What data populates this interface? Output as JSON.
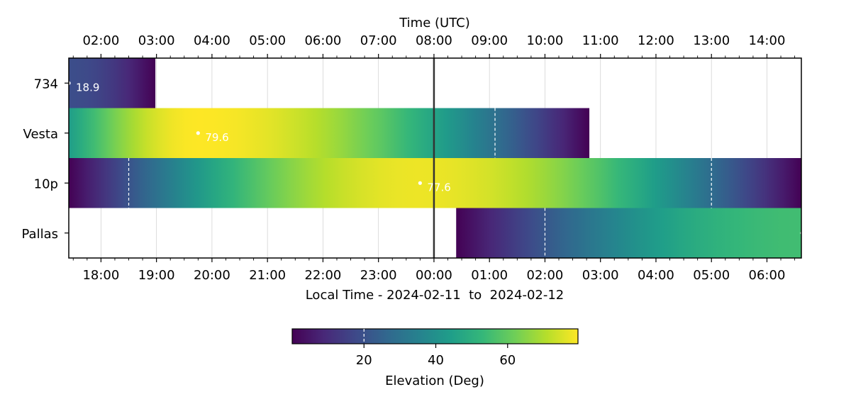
{
  "chart_data": {
    "type": "heatmap",
    "title": "",
    "top_axis": {
      "label": "Time (UTC)",
      "ticks": [
        "02:00",
        "03:00",
        "04:00",
        "05:00",
        "06:00",
        "07:00",
        "08:00",
        "09:00",
        "10:00",
        "11:00",
        "12:00",
        "13:00",
        "14:00"
      ]
    },
    "bottom_axis": {
      "label": "Local Time - 2024-02-11  to  2024-02-12",
      "ticks": [
        "18:00",
        "19:00",
        "20:00",
        "21:00",
        "22:00",
        "23:00",
        "00:00",
        "01:00",
        "02:00",
        "03:00",
        "04:00",
        "05:00",
        "06:00"
      ]
    },
    "x_range_hours": [
      -6.58,
      6.62
    ],
    "local_midnight_hour": 0,
    "grid": true,
    "categories": [
      "734",
      "Vesta",
      "10p",
      "Pallas"
    ],
    "rows": [
      {
        "name": "734",
        "start": -6.58,
        "end": -5.02,
        "elev_start": 18.9,
        "elev_end": 0,
        "peak_time": -6.58,
        "peak_elev": 18.9,
        "peak_label": "18.9",
        "threshold_crossings": []
      },
      {
        "name": "Vesta",
        "start": -6.58,
        "end": 2.8,
        "elev_start": 44,
        "elev_end": 0,
        "peak_time": -4.25,
        "peak_elev": 79.6,
        "peak_label": "79.6",
        "threshold_crossings": [
          1.1
        ]
      },
      {
        "name": "10p",
        "start": -6.58,
        "end": 6.62,
        "elev_start": 0,
        "elev_end": 0,
        "peak_time": -0.25,
        "peak_elev": 77.6,
        "peak_label": "77.6",
        "threshold_crossings": [
          -5.5,
          5.0
        ]
      },
      {
        "name": "Pallas",
        "start": 0.4,
        "end": 6.62,
        "elev_start": 0,
        "elev_end": 55,
        "peak_time": 6.62,
        "peak_elev": 55,
        "peak_label": "",
        "threshold_crossings": [
          2.0
        ]
      }
    ],
    "colorbar": {
      "label": "Elevation (Deg)",
      "min": 0,
      "max": 79.6,
      "ticks": [
        20,
        40,
        60
      ],
      "marker": 20
    },
    "colormap": "viridis"
  }
}
